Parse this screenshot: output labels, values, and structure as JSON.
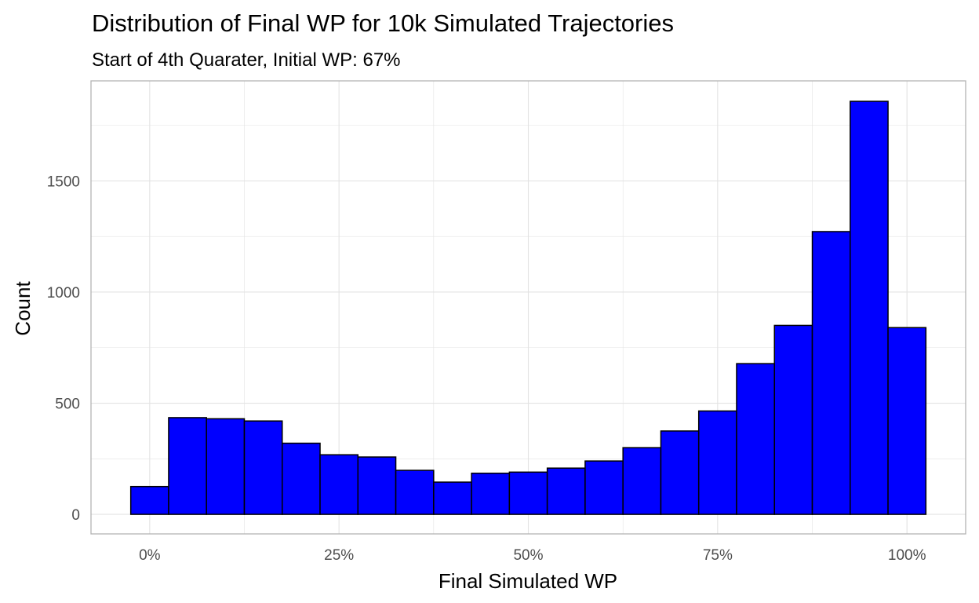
{
  "chart_data": {
    "type": "bar",
    "title": "Distribution of Final WP for 10k Simulated Trajectories",
    "subtitle": "Start of 4th Quarater, Initial WP: 67%",
    "xlabel": "Final Simulated WP",
    "ylabel": "Count",
    "bin_width": 0.05,
    "bin_centers": [
      0.0,
      0.05,
      0.1,
      0.15,
      0.2,
      0.25,
      0.3,
      0.35,
      0.4,
      0.45,
      0.5,
      0.55,
      0.6,
      0.65,
      0.7,
      0.75,
      0.8,
      0.85,
      0.9,
      0.95,
      1.0
    ],
    "values": [
      125,
      435,
      430,
      420,
      320,
      268,
      258,
      198,
      145,
      185,
      190,
      208,
      240,
      300,
      375,
      465,
      678,
      850,
      1272,
      1858,
      840
    ],
    "xlim": [
      -0.0775,
      1.0775
    ],
    "ylim": [
      -88,
      1950
    ],
    "x_ticks": [
      0,
      0.25,
      0.5,
      0.75,
      1.0
    ],
    "x_tick_labels": [
      "0%",
      "25%",
      "50%",
      "75%",
      "100%"
    ],
    "y_ticks": [
      0,
      500,
      1000,
      1500
    ],
    "y_tick_labels": [
      "0",
      "500",
      "1000",
      "1500"
    ],
    "grid": true,
    "bar_fill": "#0000ff",
    "bar_stroke": "#000000",
    "grid_color": "#e3e3e3",
    "panel_border_color": "#b3b3b3"
  }
}
